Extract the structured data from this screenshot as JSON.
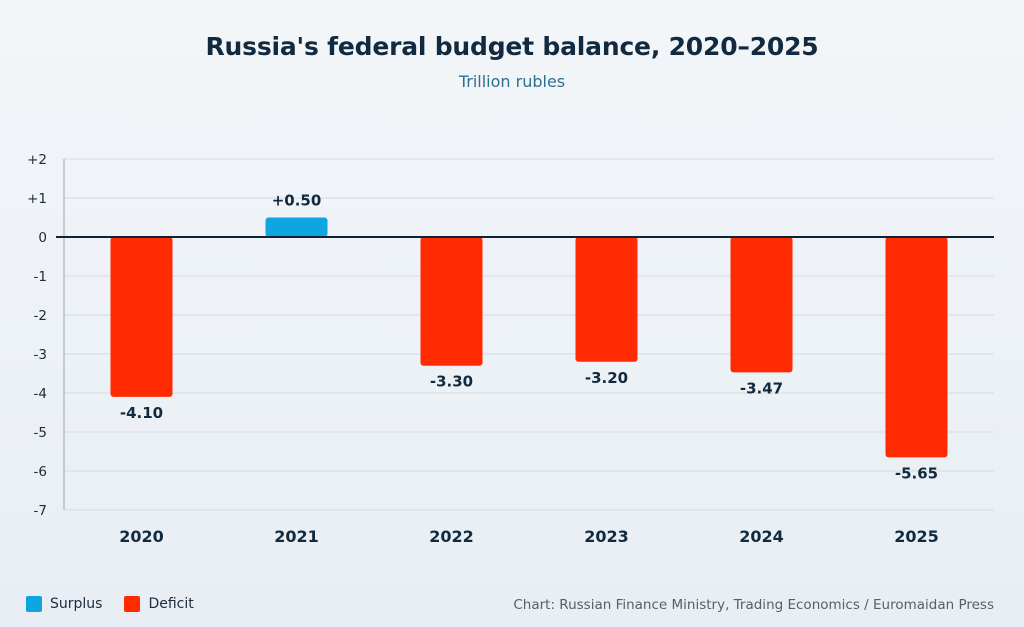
{
  "title": "Russia's federal budget balance, 2020–2025",
  "subtitle": "Trillion rubles",
  "source": "Chart: Russian Finance Ministry, Trading Economics / Euromaidan Press",
  "legend": [
    {
      "label": "Surplus",
      "color": "#0ea5e0"
    },
    {
      "label": "Deficit",
      "color": "#ff2a00"
    }
  ],
  "chart_data": {
    "type": "bar",
    "title": "Russia's federal budget balance, 2020–2025",
    "subtitle": "Trillion rubles",
    "categories": [
      "2020",
      "2021",
      "2022",
      "2023",
      "2024",
      "2025"
    ],
    "values": [
      -4.1,
      0.5,
      -3.3,
      -3.2,
      -3.47,
      -5.65
    ],
    "value_labels": [
      "-4.10",
      "+0.50",
      "-3.30",
      "-3.20",
      "-3.47",
      "-5.65"
    ],
    "ylim": [
      -7,
      2
    ],
    "yticks": [
      2,
      1,
      0,
      -1,
      -2,
      -3,
      -4,
      -5,
      -6,
      -7
    ],
    "ytick_labels": [
      "+2",
      "+1",
      "0",
      "-1",
      "-2",
      "-3",
      "-4",
      "-5",
      "-6",
      "-7"
    ],
    "grid": true,
    "legend_position": "bottom-left",
    "colors": {
      "positive": "#0ea5e0",
      "negative": "#ff2a00",
      "zero_line": "#0f2235",
      "grid": "#d3dbe3",
      "axis_text": "#1c2b3a"
    }
  }
}
